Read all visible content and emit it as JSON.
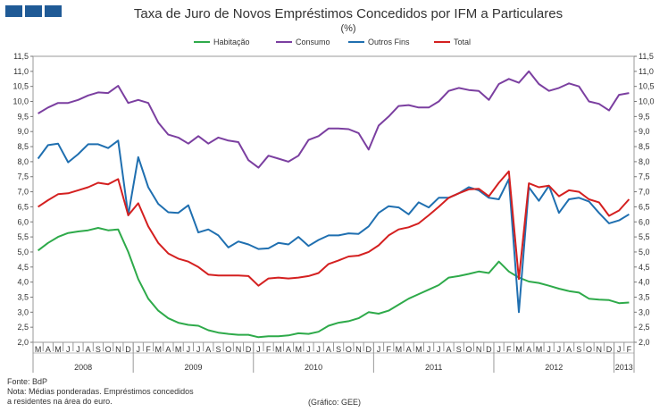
{
  "header": {
    "logo_icon": "bdp-blue-squares-logo"
  },
  "notes": {
    "source": "Fonte: BdP",
    "note_line1": "Nota: Médias ponderadas. Empréstimos concedidos",
    "note_line2": "a residentes na área do euro.",
    "credit": "(Gráfico: GEE)"
  },
  "chart_data": {
    "type": "line",
    "title": "Taxa de Juro de Novos Empréstimos Concedidos por IFM a Particulares",
    "subtitle": "(%)",
    "ylim": [
      2.0,
      11.5
    ],
    "y_ticks": [
      "2,0",
      "2,5",
      "3,0",
      "3,5",
      "4,0",
      "4,5",
      "5,0",
      "5,5",
      "6,0",
      "6,5",
      "7,0",
      "7,5",
      "8,0",
      "8,5",
      "9,0",
      "9,5",
      "10,0",
      "10,5",
      "11,0",
      "11,5"
    ],
    "y_axes": "left-and-right",
    "grid": false,
    "legend_position": "top",
    "month_labels": [
      "M",
      "A",
      "M",
      "J",
      "J",
      "A",
      "S",
      "O",
      "N",
      "D",
      "J",
      "F",
      "M",
      "A",
      "M",
      "J",
      "J",
      "A",
      "S",
      "O",
      "N",
      "D",
      "J",
      "F",
      "M",
      "A",
      "M",
      "J",
      "J",
      "A",
      "S",
      "O",
      "N",
      "D",
      "J",
      "F",
      "M",
      "A",
      "M",
      "J",
      "J",
      "A",
      "S",
      "O",
      "N",
      "D",
      "J",
      "F",
      "M",
      "A",
      "M",
      "J",
      "J",
      "A",
      "S",
      "O",
      "N",
      "D",
      "J",
      "F"
    ],
    "years": [
      {
        "label": "2008",
        "start": 0,
        "end": 10
      },
      {
        "label": "2009",
        "start": 10,
        "end": 22
      },
      {
        "label": "2010",
        "start": 22,
        "end": 34
      },
      {
        "label": "2011",
        "start": 34,
        "end": 46
      },
      {
        "label": "2012",
        "start": 46,
        "end": 58
      },
      {
        "label": "2013",
        "start": 58,
        "end": 60
      }
    ],
    "series": [
      {
        "name": "Habitação",
        "color": "#2eaa4a",
        "values": [
          5.05,
          5.3,
          5.5,
          5.63,
          5.68,
          5.72,
          5.8,
          5.72,
          5.75,
          5.0,
          4.1,
          3.45,
          3.05,
          2.8,
          2.65,
          2.58,
          2.55,
          2.4,
          2.32,
          2.28,
          2.25,
          2.25,
          2.17,
          2.2,
          2.2,
          2.23,
          2.3,
          2.28,
          2.35,
          2.55,
          2.65,
          2.7,
          2.8,
          3.0,
          2.95,
          3.05,
          3.25,
          3.45,
          3.6,
          3.75,
          3.9,
          4.15,
          4.2,
          4.27,
          4.35,
          4.3,
          4.68,
          4.35,
          4.15,
          4.02,
          3.97,
          3.88,
          3.78,
          3.7,
          3.65,
          3.45,
          3.42,
          3.4,
          3.3,
          3.32
        ]
      },
      {
        "name": "Consumo",
        "color": "#7b3fa0",
        "values": [
          9.6,
          9.8,
          9.95,
          9.95,
          10.05,
          10.2,
          10.3,
          10.28,
          10.52,
          9.95,
          10.05,
          9.95,
          9.3,
          8.9,
          8.8,
          8.6,
          8.85,
          8.6,
          8.8,
          8.7,
          8.65,
          8.05,
          7.8,
          8.2,
          8.1,
          8.0,
          8.2,
          8.72,
          8.85,
          9.1,
          9.1,
          9.08,
          8.95,
          8.4,
          9.2,
          9.5,
          9.85,
          9.88,
          9.8,
          9.8,
          10.0,
          10.35,
          10.45,
          10.38,
          10.35,
          10.05,
          10.58,
          10.75,
          10.62,
          11.0,
          10.58,
          10.35,
          10.45,
          10.6,
          10.5,
          10.0,
          9.92,
          9.7,
          10.22,
          10.28
        ]
      },
      {
        "name": "Outros Fins",
        "color": "#1f6fb0",
        "values": [
          8.1,
          8.55,
          8.6,
          7.98,
          8.25,
          8.58,
          8.58,
          8.45,
          8.7,
          6.22,
          8.15,
          7.15,
          6.6,
          6.32,
          6.3,
          6.55,
          5.65,
          5.75,
          5.55,
          5.15,
          5.35,
          5.25,
          5.1,
          5.12,
          5.3,
          5.25,
          5.5,
          5.2,
          5.4,
          5.55,
          5.55,
          5.62,
          5.6,
          5.85,
          6.3,
          6.52,
          6.48,
          6.25,
          6.65,
          6.48,
          6.8,
          6.8,
          6.95,
          7.15,
          7.05,
          6.8,
          6.75,
          7.42,
          3.0,
          7.15,
          6.7,
          7.2,
          6.3,
          6.75,
          6.8,
          6.68,
          6.3,
          5.95,
          6.05,
          6.25
        ]
      },
      {
        "name": "Total",
        "color": "#d42020",
        "values": [
          6.5,
          6.72,
          6.92,
          6.95,
          7.05,
          7.15,
          7.3,
          7.25,
          7.42,
          6.22,
          6.62,
          5.85,
          5.3,
          4.95,
          4.78,
          4.68,
          4.5,
          4.25,
          4.22,
          4.22,
          4.22,
          4.2,
          3.88,
          4.12,
          4.15,
          4.12,
          4.15,
          4.2,
          4.3,
          4.6,
          4.72,
          4.85,
          4.88,
          5.0,
          5.22,
          5.55,
          5.75,
          5.82,
          5.95,
          6.22,
          6.5,
          6.8,
          6.95,
          7.08,
          7.1,
          6.85,
          7.3,
          7.68,
          4.1,
          7.28,
          7.15,
          7.2,
          6.85,
          7.05,
          7.0,
          6.75,
          6.65,
          6.2,
          6.38,
          6.75
        ]
      }
    ]
  }
}
